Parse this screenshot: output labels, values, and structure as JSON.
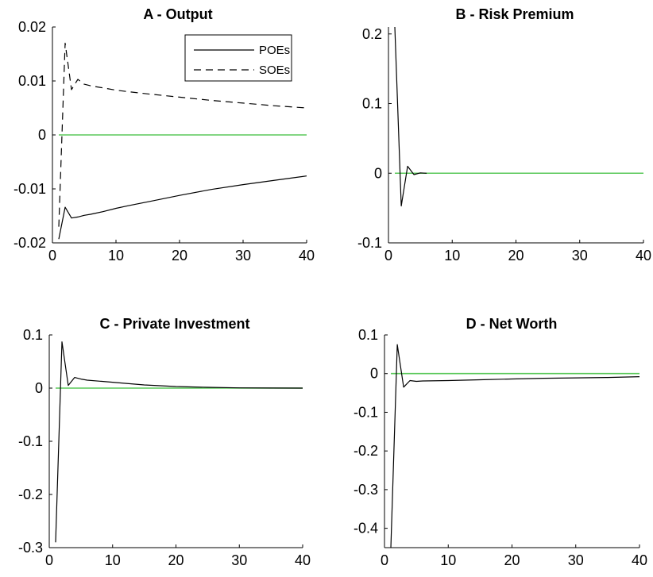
{
  "chart_data": [
    {
      "type": "line",
      "title": "A - Output",
      "xlabel": "",
      "ylabel": "",
      "xlim": [
        0,
        40
      ],
      "ylim": [
        -0.02,
        0.02
      ],
      "xticks": [
        0,
        10,
        20,
        30,
        40
      ],
      "yticks": [
        -0.02,
        -0.01,
        0,
        0.01,
        0.02
      ],
      "xtick_labels": [
        "0",
        "10",
        "20",
        "30",
        "40"
      ],
      "ytick_labels": [
        "-0.02",
        "-0.01",
        "0",
        "0.01",
        "0.02"
      ],
      "grid": false,
      "legend": {
        "position": "top-right",
        "entries": [
          "POEs",
          "SOEs"
        ]
      },
      "zero_line": {
        "y": 0,
        "x_range": [
          1,
          40
        ],
        "color": "#5ac85a"
      },
      "series": [
        {
          "name": "POEs",
          "style": "solid",
          "color": "#000000",
          "x": [
            1,
            2,
            3,
            4,
            5,
            6,
            8,
            10,
            12,
            15,
            20,
            25,
            30,
            35,
            40
          ],
          "y": [
            -0.0193,
            -0.0134,
            -0.0154,
            -0.0152,
            -0.0149,
            -0.0147,
            -0.0142,
            -0.0136,
            -0.0131,
            -0.0124,
            -0.0112,
            -0.0101,
            -0.0092,
            -0.0084,
            -0.0076
          ]
        },
        {
          "name": "SOEs",
          "style": "dashed",
          "color": "#000000",
          "x": [
            1,
            2,
            3,
            4,
            5,
            6,
            8,
            10,
            12,
            15,
            20,
            25,
            30,
            35,
            40
          ],
          "y": [
            -0.017,
            0.017,
            0.0084,
            0.0103,
            0.0094,
            0.0091,
            0.0087,
            0.0083,
            0.008,
            0.0076,
            0.007,
            0.0064,
            0.0059,
            0.0054,
            0.005
          ]
        }
      ]
    },
    {
      "type": "line",
      "title": "B - Risk Premium",
      "xlabel": "",
      "ylabel": "",
      "xlim": [
        0,
        40
      ],
      "ylim": [
        -0.1,
        0.21
      ],
      "xticks": [
        0,
        10,
        20,
        30,
        40
      ],
      "yticks": [
        -0.1,
        0,
        0.1,
        0.2
      ],
      "xtick_labels": [
        "0",
        "10",
        "20",
        "30",
        "40"
      ],
      "ytick_labels": [
        "-0.1",
        "0",
        "0.1",
        "0.2"
      ],
      "grid": false,
      "zero_line": {
        "y": 0,
        "x_range": [
          1,
          40
        ],
        "color": "#5ac85a"
      },
      "series": [
        {
          "style": "solid",
          "color": "#000000",
          "x": [
            1,
            2,
            3,
            4,
            5,
            6
          ],
          "y": [
            0.21,
            -0.047,
            0.01,
            -0.002,
            0.0005,
            0
          ]
        }
      ]
    },
    {
      "type": "line",
      "title": "C - Private Investment",
      "xlabel": "",
      "ylabel": "",
      "xlim": [
        0,
        40
      ],
      "ylim": [
        -0.3,
        0.1
      ],
      "xticks": [
        0,
        10,
        20,
        30,
        40
      ],
      "yticks": [
        -0.3,
        -0.2,
        -0.1,
        0,
        0.1
      ],
      "xtick_labels": [
        "0",
        "10",
        "20",
        "30",
        "40"
      ],
      "ytick_labels": [
        "-0.3",
        "-0.2",
        "-0.1",
        "0",
        "0.1"
      ],
      "grid": false,
      "zero_line": {
        "y": 0,
        "x_range": [
          1,
          40
        ],
        "color": "#5ac85a"
      },
      "series": [
        {
          "style": "solid",
          "color": "#000000",
          "x": [
            1,
            2,
            3,
            4,
            5,
            6,
            8,
            10,
            12,
            15,
            20,
            25,
            30,
            35,
            40
          ],
          "y": [
            -0.29,
            0.087,
            0.005,
            0.02,
            0.017,
            0.015,
            0.013,
            0.011,
            0.009,
            0.006,
            0.003,
            0.0015,
            0.0005,
            0.0002,
            0
          ]
        }
      ]
    },
    {
      "type": "line",
      "title": "D - Net Worth",
      "xlabel": "",
      "ylabel": "",
      "xlim": [
        0,
        40
      ],
      "ylim": [
        -0.45,
        0.1
      ],
      "xticks": [
        0,
        10,
        20,
        30,
        40
      ],
      "yticks": [
        -0.4,
        -0.3,
        -0.2,
        -0.1,
        0,
        0.1
      ],
      "xtick_labels": [
        "0",
        "10",
        "20",
        "30",
        "40"
      ],
      "ytick_labels": [
        "-0.4",
        "-0.3",
        "-0.2",
        "-0.1",
        "0",
        "0.1"
      ],
      "grid": false,
      "zero_line": {
        "y": 0,
        "x_range": [
          1,
          40
        ],
        "color": "#5ac85a"
      },
      "series": [
        {
          "style": "solid",
          "color": "#000000",
          "x": [
            1,
            2,
            3,
            4,
            5,
            6,
            10,
            15,
            20,
            25,
            30,
            35,
            40
          ],
          "y": [
            -0.45,
            0.075,
            -0.035,
            -0.018,
            -0.02,
            -0.019,
            -0.018,
            -0.016,
            -0.014,
            -0.012,
            -0.011,
            -0.01,
            -0.008
          ]
        }
      ]
    }
  ]
}
